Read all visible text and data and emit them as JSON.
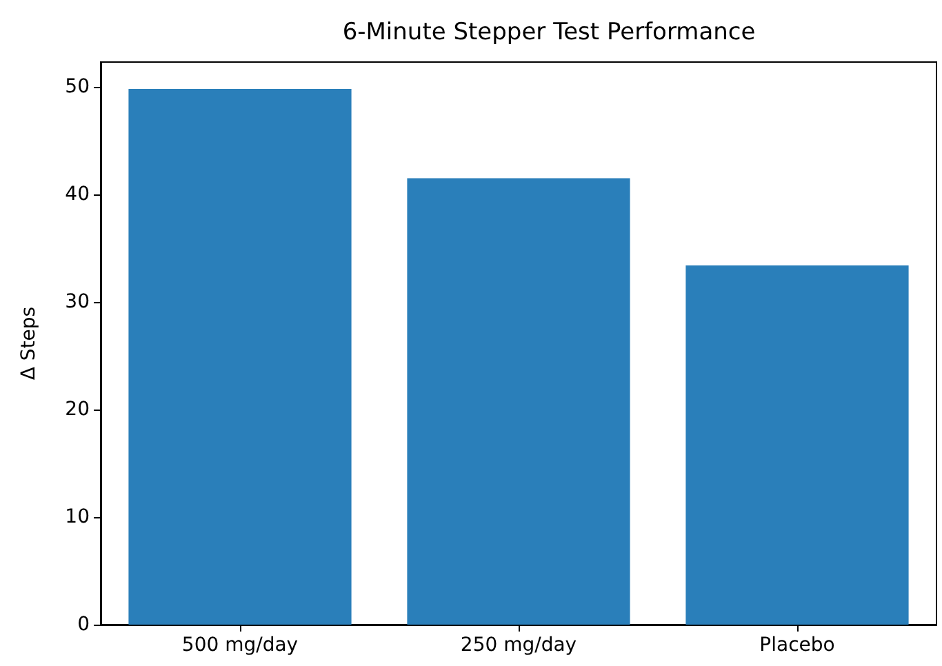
{
  "chart_data": {
    "type": "bar",
    "title": "6-Minute Stepper Test Performance",
    "ylabel": "Δ Steps",
    "categories": [
      "500 mg/day",
      "250 mg/day",
      "Placebo"
    ],
    "values": [
      49.8,
      41.5,
      33.4
    ],
    "color": "#2a7fba",
    "ylim": [
      0,
      52.3
    ],
    "yticks": [
      0,
      10,
      20,
      30,
      40,
      50
    ],
    "grid": false
  }
}
